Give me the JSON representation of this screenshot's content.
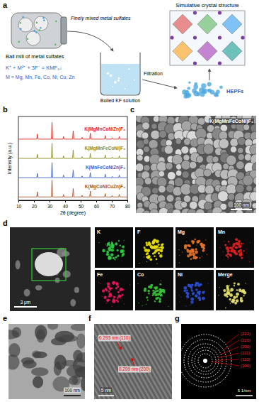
{
  "chart_data": {
    "type": "line",
    "xlabel": "2θ (degree)",
    "ylabel": "Intensity (a.u.)",
    "x": [
      10,
      21.8,
      22.2,
      22.6,
      31.2,
      31.6,
      32.0,
      38.6,
      39.0,
      39.4,
      44.8,
      45.2,
      45.6,
      50.5,
      50.9,
      51.3,
      55.8,
      56.2,
      56.6,
      65.4,
      65.8,
      66.2,
      69.9,
      70.3,
      70.7,
      74.4,
      74.8,
      75.2,
      80
    ],
    "series": [
      {
        "name": "K(MgMnCoNiZn)F₃",
        "color": "#e0251b",
        "values": [
          73,
          73,
          79,
          73,
          73,
          93,
          73,
          73,
          76,
          73,
          73,
          83,
          73,
          73,
          75,
          73,
          73,
          80,
          73,
          73,
          77,
          73,
          73,
          74.5,
          73,
          73,
          76,
          73,
          73
        ]
      },
      {
        "name": "K(MgMnFeCoNi)F₃",
        "color": "#8b8b1a",
        "values": [
          50,
          50,
          55,
          50,
          50,
          68,
          50,
          50,
          53,
          50,
          50,
          60,
          50,
          50,
          52,
          50,
          50,
          56,
          50,
          50,
          54,
          50,
          50,
          51.5,
          50,
          50,
          53,
          50,
          50
        ]
      },
      {
        "name": "K(MnFeCoNiZn)F₃",
        "color": "#3a5fc8",
        "values": [
          27,
          27,
          32,
          27,
          27,
          45,
          27,
          27,
          30,
          27,
          27,
          36,
          27,
          27,
          29,
          27,
          27,
          33,
          27,
          27,
          31,
          27,
          27,
          28.5,
          27,
          27,
          30,
          27,
          27
        ]
      },
      {
        "name": "K(MgCoNiCuZn)F₃",
        "color": "#a0522d",
        "values": [
          4,
          4,
          10,
          4,
          4,
          24,
          4,
          4,
          7,
          4,
          4,
          14,
          4,
          4,
          6,
          4,
          4,
          11,
          4,
          4,
          8,
          4,
          4,
          5.5,
          4,
          4,
          7,
          4,
          4
        ]
      }
    ],
    "xlim": [
      10,
      80
    ],
    "xticks": [
      10,
      20,
      30,
      40,
      50,
      60,
      70,
      80
    ],
    "ylim": [
      0,
      100
    ],
    "tick_labels": "x"
  },
  "panels": {
    "a": {
      "letter": "a",
      "ball_mill": "Ball mill of metal sulfates",
      "mixed": "Finely mixed metal sulfates",
      "reaction": "K⁺ + M²⁺ + 3F⁻ = KMF₃↓",
      "metals": "M = Mg, Mn, Fe, Co, Ni, Cu, Zn",
      "solution": "Boiled KF solution",
      "filtration": "Filtration",
      "product": "HEPFs",
      "structure": "Simulative crystal structure"
    },
    "b": {
      "letter": "b"
    },
    "c": {
      "letter": "c",
      "sample": "K(MgMnFeCoNi)F₃",
      "scale_bar": "100 nm"
    },
    "d": {
      "letter": "d",
      "scale_bar": "3 μm",
      "maps": [
        "K",
        "F",
        "Mg",
        "Mn",
        "Fe",
        "Co",
        "Ni",
        "Merge"
      ]
    },
    "e": {
      "letter": "e",
      "scale_bar": "100 nm"
    },
    "f": {
      "letter": "f",
      "annotations": [
        "0.293 nm (110)",
        "0.209 nm (200)"
      ],
      "scale_bar": "5 nm"
    },
    "g": {
      "letter": "g",
      "rings": [
        "(222)",
        "(220)",
        "(200)",
        "(111)",
        "(110)",
        "(100)"
      ],
      "scale_bar": "5 1/nm"
    }
  }
}
